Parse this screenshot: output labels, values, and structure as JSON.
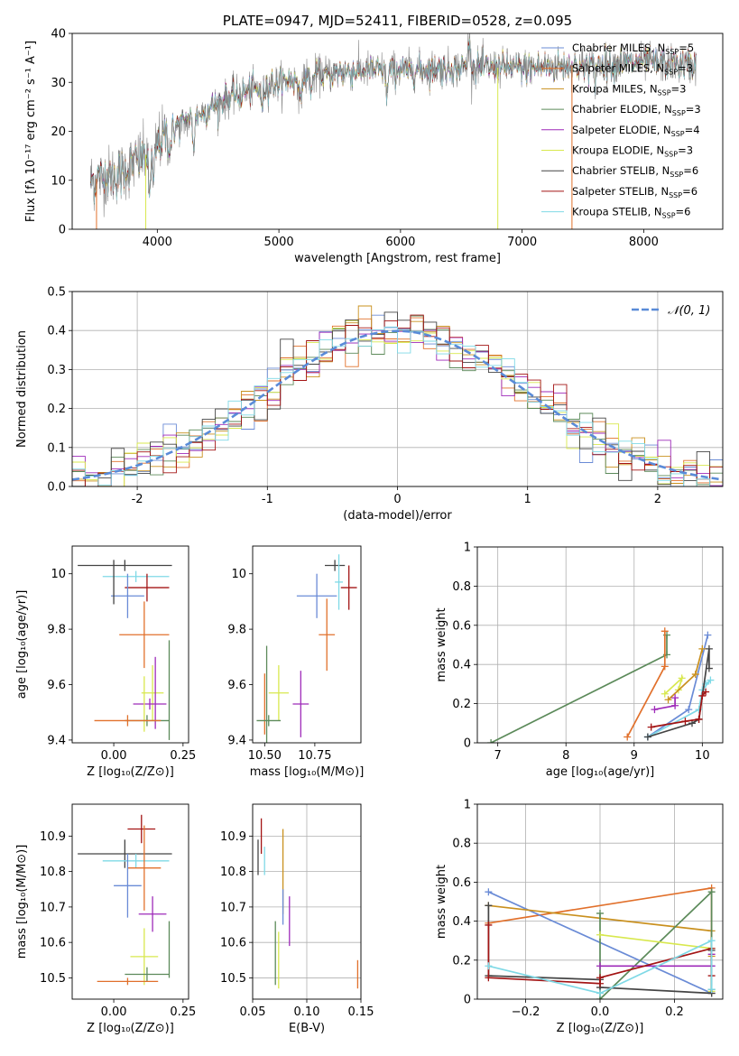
{
  "figure_title": "PLATE=0947, MJD=52411, FIBERID=0528, z=0.095",
  "colors": {
    "Chabrier MILES": "#6a8bd6",
    "Salpeter MILES": "#e1702b",
    "Kroupa MILES": "#c9901e",
    "Chabrier ELODIE": "#5c8a5a",
    "Salpeter ELODIE": "#9e2ab9",
    "Kroupa ELODIE": "#d8e84e",
    "Chabrier STELIB": "#444444",
    "Salpeter STELIB": "#a31414",
    "Kroupa STELIB": "#7fd9e6",
    "Normal": "#5a8bd8",
    "grid": "#b0b0b0"
  },
  "chart_data": [
    {
      "id": "spectrum",
      "type": "line",
      "title": "PLATE=0947, MJD=52411, FIBERID=0528, z=0.095",
      "xlabel": "wavelength [Angstrom, rest frame]",
      "ylabel": "Flux [fλ 10⁻¹⁷ erg cm⁻² s⁻¹ A⁻¹]",
      "xlim": [
        3300,
        8650
      ],
      "ylim": [
        0,
        40
      ],
      "xticks": [
        4000,
        5000,
        6000,
        7000,
        8000
      ],
      "yticks": [
        0,
        10,
        20,
        30,
        40
      ],
      "grid": false,
      "legend_position": "right",
      "legend": [
        {
          "label": "Chabrier MILES, N",
          "sub": "SSP",
          "suffix": "=5",
          "color": "#6a8bd6"
        },
        {
          "label": "Salpeter MILES, N",
          "sub": "SSP",
          "suffix": "=3",
          "color": "#e1702b"
        },
        {
          "label": "Kroupa MILES, N",
          "sub": "SSP",
          "suffix": "=3",
          "color": "#c9901e"
        },
        {
          "label": "Chabrier ELODIE, N",
          "sub": "SSP",
          "suffix": "=3",
          "color": "#5c8a5a"
        },
        {
          "label": "Salpeter ELODIE, N",
          "sub": "SSP",
          "suffix": "=4",
          "color": "#9e2ab9"
        },
        {
          "label": "Kroupa ELODIE, N",
          "sub": "SSP",
          "suffix": "=3",
          "color": "#d8e84e"
        },
        {
          "label": "Chabrier STELIB, N",
          "sub": "SSP",
          "suffix": "=6",
          "color": "#444444"
        },
        {
          "label": "Salpeter STELIB, N",
          "sub": "SSP",
          "suffix": "=6",
          "color": "#a31414"
        },
        {
          "label": "Kroupa STELIB, N",
          "sub": "SSP",
          "suffix": "=6",
          "color": "#7fd9e6"
        }
      ],
      "data_range_x": [
        3450,
        8430
      ],
      "continuum": [
        [
          3450,
          10
        ],
        [
          3700,
          11.5
        ],
        [
          3950,
          16
        ],
        [
          4050,
          19
        ],
        [
          4300,
          23
        ],
        [
          4600,
          27
        ],
        [
          5000,
          30
        ],
        [
          5300,
          31.5
        ],
        [
          5700,
          32.5
        ],
        [
          6000,
          32.5
        ],
        [
          6500,
          33
        ],
        [
          7000,
          33
        ],
        [
          7500,
          33.5
        ],
        [
          8000,
          34
        ],
        [
          8430,
          33.5
        ]
      ],
      "absorption_features": [
        [
          3934,
          9
        ],
        [
          3968,
          8
        ],
        [
          4102,
          4
        ],
        [
          4300,
          6
        ],
        [
          4861,
          4
        ],
        [
          5175,
          6
        ],
        [
          5270,
          3
        ],
        [
          5890,
          5
        ],
        [
          6563,
          -6
        ],
        [
          7600,
          3
        ]
      ],
      "dropouts": [
        [
          3500,
          0,
          "#e1702b"
        ],
        [
          3905,
          0,
          "#d8e84e"
        ],
        [
          6800,
          0,
          "#d8e84e"
        ],
        [
          7410,
          0,
          "#e1702b"
        ]
      ]
    },
    {
      "id": "residuals",
      "type": "step",
      "xlabel": "(data-model)/error",
      "ylabel": "Normed distribution",
      "xlim": [
        -2.5,
        2.5
      ],
      "ylim": [
        0,
        0.5
      ],
      "xticks": [
        -2,
        -1,
        0,
        1,
        2
      ],
      "yticks": [
        0.0,
        0.1,
        0.2,
        0.3,
        0.4,
        0.5
      ],
      "grid": true,
      "legend_position": "upper right",
      "legend": [
        {
          "label": "𝒩(0, 1)",
          "color": "#5a8bd8",
          "style": "dashed"
        }
      ],
      "bins": 50,
      "bin_width": 0.1
    },
    {
      "id": "age_vs_Z",
      "type": "errorbar",
      "xlabel": "Z [log₁₀(Z/Z⊙)]",
      "ylabel": "age  [log₁₀(age/yr)]",
      "xlim": [
        -0.15,
        0.27
      ],
      "ylim": [
        9.39,
        10.1
      ],
      "xticks": [
        0.0,
        0.25
      ],
      "xticklabels": [
        "0.00",
        "0.25"
      ],
      "yticks": [
        9.4,
        9.6,
        9.8,
        10.0
      ],
      "grid": false,
      "points": [
        {
          "series": "Chabrier STELIB",
          "x": 0.04,
          "xerr": 0.17,
          "y": 10.03,
          "yerr": 0.02
        },
        {
          "series": "Kroupa STELIB",
          "x": 0.08,
          "xerr": 0.12,
          "y": 9.99,
          "yerr": 0.02
        },
        {
          "series": "Salpeter STELIB",
          "x": 0.12,
          "xerr": 0.08,
          "y": 9.95,
          "yerr": 0.05
        },
        {
          "series": "Chabrier MILES",
          "x": 0.05,
          "xerr": 0.06,
          "y": 9.92,
          "yerr": 0.08
        },
        {
          "series": "Chabrier STELIB",
          "x": 0.0,
          "xerr": 0.0,
          "y": 9.97,
          "yerr": 0.08
        },
        {
          "series": "Salpeter MILES",
          "x": 0.11,
          "xerr": 0.09,
          "y": 9.78,
          "yerr": 0.12
        },
        {
          "series": "Chabrier ELODIE",
          "x": 0.2,
          "xerr": 0.0,
          "y": 9.58,
          "yerr": 0.18
        },
        {
          "series": "Kroupa ELODIE",
          "x": 0.14,
          "xerr": 0.04,
          "y": 9.57,
          "yerr": 0.1
        },
        {
          "series": "Salpeter ELODIE",
          "x": 0.15,
          "xerr": 0.0,
          "y": 9.57,
          "yerr": 0.13
        },
        {
          "series": "Salpeter ELODIE",
          "x": 0.13,
          "xerr": 0.06,
          "y": 9.53,
          "yerr": 0.02
        },
        {
          "series": "Kroupa ELODIE",
          "x": 0.11,
          "xerr": 0.0,
          "y": 9.53,
          "yerr": 0.1
        },
        {
          "series": "Chabrier ELODIE",
          "x": 0.12,
          "xerr": 0.08,
          "y": 9.47,
          "yerr": 0.02
        },
        {
          "series": "Salpeter MILES",
          "x": 0.05,
          "xerr": 0.12,
          "y": 9.47,
          "yerr": 0.02
        }
      ]
    },
    {
      "id": "age_vs_mass",
      "type": "errorbar",
      "xlabel": "mass [log₁₀(M/M⊙)]",
      "ylabel": "",
      "xlim": [
        10.44,
        10.98
      ],
      "ylim": [
        9.39,
        10.1
      ],
      "xticks": [
        10.5,
        10.75
      ],
      "xticklabels": [
        "10.50",
        "10.75"
      ],
      "yticks": [
        9.4,
        9.6,
        9.8,
        10.0
      ],
      "grid": false,
      "points": [
        {
          "series": "Chabrier STELIB",
          "x": 10.85,
          "xerr": 0.05,
          "y": 10.03,
          "yerr": 0.02
        },
        {
          "series": "Kroupa STELIB",
          "x": 10.87,
          "xerr": 0.02,
          "y": 9.97,
          "yerr": 0.1
        },
        {
          "series": "Salpeter STELIB",
          "x": 10.92,
          "xerr": 0.04,
          "y": 9.95,
          "yerr": 0.08
        },
        {
          "series": "Chabrier MILES",
          "x": 10.76,
          "xerr": 0.1,
          "y": 9.92,
          "yerr": 0.08
        },
        {
          "series": "Salpeter MILES",
          "x": 10.81,
          "xerr": 0.04,
          "y": 9.78,
          "yerr": 0.13
        },
        {
          "series": "Salpeter MILES",
          "x": 10.5,
          "xerr": 0.0,
          "y": 9.53,
          "yerr": 0.11
        },
        {
          "series": "Chabrier ELODIE",
          "x": 10.51,
          "xerr": 0.0,
          "y": 9.54,
          "yerr": 0.2
        },
        {
          "series": "Kroupa ELODIE",
          "x": 10.57,
          "xerr": 0.05,
          "y": 9.57,
          "yerr": 0.1
        },
        {
          "series": "Salpeter ELODIE",
          "x": 10.68,
          "xerr": 0.04,
          "y": 9.53,
          "yerr": 0.12
        },
        {
          "series": "Chabrier ELODIE",
          "x": 10.52,
          "xerr": 0.06,
          "y": 9.47,
          "yerr": 0.02
        }
      ]
    },
    {
      "id": "mass_weight_vs_age",
      "type": "line",
      "xlabel": "age  [log₁₀(age/yr)]",
      "ylabel": "mass weight",
      "xlim": [
        6.7,
        10.3
      ],
      "ylim": [
        0,
        1
      ],
      "xticks": [
        7,
        8,
        9,
        10
      ],
      "yticks": [
        0.0,
        0.2,
        0.4,
        0.6,
        0.8,
        1.0
      ],
      "grid": true,
      "series": [
        {
          "name": "Chabrier ELODIE",
          "x": [
            6.9,
            9.48,
            9.48
          ],
          "y": [
            0.0,
            0.45,
            0.55
          ]
        },
        {
          "name": "Salpeter MILES",
          "x": [
            8.9,
            9.45,
            9.45
          ],
          "y": [
            0.03,
            0.39,
            0.57
          ]
        },
        {
          "name": "Kroupa ELODIE",
          "x": [
            9.45,
            9.7,
            9.65
          ],
          "y": [
            0.25,
            0.33,
            0.27
          ]
        },
        {
          "name": "Chabrier MILES",
          "x": [
            9.2,
            9.8,
            10.08
          ],
          "y": [
            0.03,
            0.17,
            0.55
          ]
        },
        {
          "name": "Kroupa MILES",
          "x": [
            9.5,
            9.9,
            10.0
          ],
          "y": [
            0.22,
            0.35,
            0.48
          ]
        },
        {
          "name": "Salpeter ELODIE",
          "x": [
            9.3,
            9.6,
            9.6
          ],
          "y": [
            0.17,
            0.19,
            0.23
          ]
        },
        {
          "name": "Kroupa STELIB",
          "x": [
            9.2,
            9.95,
            10.0,
            10.12,
            10.05
          ],
          "y": [
            0.03,
            0.17,
            0.27,
            0.32,
            0.3
          ]
        },
        {
          "name": "Chabrier STELIB",
          "x": [
            9.2,
            9.85,
            9.95,
            10.1,
            10.1
          ],
          "y": [
            0.03,
            0.1,
            0.12,
            0.48,
            0.38
          ]
        },
        {
          "name": "Salpeter STELIB",
          "x": [
            9.25,
            9.75,
            9.95,
            10.0,
            10.05
          ],
          "y": [
            0.08,
            0.11,
            0.12,
            0.24,
            0.26
          ]
        }
      ]
    },
    {
      "id": "mass_vs_Z",
      "type": "errorbar",
      "xlabel": "Z [log₁₀(Z/Z⊙)]",
      "ylabel": "mass [log₁₀(M/M⊙)]",
      "xlim": [
        -0.15,
        0.27
      ],
      "ylim": [
        10.44,
        10.99
      ],
      "xticks": [
        0.0,
        0.25
      ],
      "xticklabels": [
        "0.00",
        "0.25"
      ],
      "yticks": [
        10.5,
        10.6,
        10.7,
        10.8,
        10.9
      ],
      "grid": false,
      "points": [
        {
          "series": "Salpeter STELIB",
          "x": 0.1,
          "xerr": 0.05,
          "y": 10.92,
          "yerr": 0.04
        },
        {
          "series": "Chabrier STELIB",
          "x": 0.04,
          "xerr": 0.17,
          "y": 10.85,
          "yerr": 0.04
        },
        {
          "series": "Kroupa STELIB",
          "x": 0.08,
          "xerr": 0.12,
          "y": 10.83,
          "yerr": 0.02
        },
        {
          "series": "Salpeter MILES",
          "x": 0.11,
          "xerr": 0.06,
          "y": 10.81,
          "yerr": 0.12
        },
        {
          "series": "Chabrier MILES",
          "x": 0.05,
          "xerr": 0.05,
          "y": 10.76,
          "yerr": 0.09
        },
        {
          "series": "Salpeter ELODIE",
          "x": 0.14,
          "xerr": 0.05,
          "y": 10.68,
          "yerr": 0.05
        },
        {
          "series": "Chabrier ELODIE",
          "x": 0.2,
          "xerr": 0.0,
          "y": 10.58,
          "yerr": 0.08
        },
        {
          "series": "Kroupa ELODIE",
          "x": 0.11,
          "xerr": 0.05,
          "y": 10.56,
          "yerr": 0.08
        },
        {
          "series": "Chabrier ELODIE",
          "x": 0.12,
          "xerr": 0.08,
          "y": 10.51,
          "yerr": 0.02
        },
        {
          "series": "Salpeter MILES",
          "x": 0.05,
          "xerr": 0.11,
          "y": 10.49,
          "yerr": 0.01
        }
      ]
    },
    {
      "id": "mass_vs_ebv",
      "type": "errorbar",
      "xlabel": "E(B-V)",
      "ylabel": "",
      "xlim": [
        0.05,
        0.15
      ],
      "ylim": [
        10.44,
        10.99
      ],
      "xticks": [
        0.05,
        0.1,
        0.15
      ],
      "xticklabels": [
        "0.05",
        "0.10",
        "0.15"
      ],
      "yticks": [
        10.5,
        10.6,
        10.7,
        10.8,
        10.9
      ],
      "grid": true,
      "points": [
        {
          "series": "Salpeter STELIB",
          "x": 0.058,
          "xerr": 0,
          "y": 10.9,
          "yerr": 0.05
        },
        {
          "series": "Chabrier STELIB",
          "x": 0.055,
          "xerr": 0,
          "y": 10.84,
          "yerr": 0.05
        },
        {
          "series": "Kroupa STELIB",
          "x": 0.061,
          "xerr": 0,
          "y": 10.83,
          "yerr": 0.04
        },
        {
          "series": "Kroupa MILES",
          "x": 0.078,
          "xerr": 0,
          "y": 10.8,
          "yerr": 0.12
        },
        {
          "series": "Chabrier MILES",
          "x": 0.078,
          "xerr": 0,
          "y": 10.7,
          "yerr": 0.05
        },
        {
          "series": "Salpeter ELODIE",
          "x": 0.084,
          "xerr": 0,
          "y": 10.66,
          "yerr": 0.07
        },
        {
          "series": "Chabrier ELODIE",
          "x": 0.071,
          "xerr": 0,
          "y": 10.57,
          "yerr": 0.09
        },
        {
          "series": "Kroupa ELODIE",
          "x": 0.074,
          "xerr": 0,
          "y": 10.55,
          "yerr": 0.08
        },
        {
          "series": "Salpeter MILES",
          "x": 0.147,
          "xerr": 0,
          "y": 10.51,
          "yerr": 0.04
        }
      ]
    },
    {
      "id": "mass_weight_vs_Z",
      "type": "line",
      "xlabel": "Z [log₁₀(Z/Z⊙)]",
      "ylabel": "mass weight",
      "xlim": [
        -0.33,
        0.33
      ],
      "ylim": [
        0,
        1
      ],
      "xticks": [
        -0.2,
        0.0,
        0.2
      ],
      "xticklabels": [
        "−0.2",
        "0.0",
        "0.2"
      ],
      "yticks": [
        0.0,
        0.2,
        0.4,
        0.6,
        0.8,
        1.0
      ],
      "grid": true,
      "series": [
        {
          "name": "Salpeter MILES",
          "x": [
            -0.3,
            0.3,
            0.3
          ],
          "y": [
            0.39,
            0.57,
            0.03
          ]
        },
        {
          "name": "Chabrier MILES",
          "x": [
            -0.3,
            0.3,
            0.3
          ],
          "y": [
            0.55,
            0.03,
            0.17
          ]
        },
        {
          "name": "Kroupa MILES",
          "x": [
            -0.3,
            0.3,
            0.3
          ],
          "y": [
            0.48,
            0.35,
            0.22
          ]
        },
        {
          "name": "Chabrier ELODIE",
          "x": [
            0.0,
            0.0,
            0.3,
            0.3
          ],
          "y": [
            0.44,
            0.0,
            0.55,
            0.05
          ]
        },
        {
          "name": "Kroupa ELODIE",
          "x": [
            0.0,
            0.3,
            0.3
          ],
          "y": [
            0.33,
            0.26,
            0.04
          ]
        },
        {
          "name": "Salpeter ELODIE",
          "x": [
            0.0,
            0.3,
            0.3
          ],
          "y": [
            0.17,
            0.17,
            0.23
          ]
        },
        {
          "name": "Chabrier STELIB",
          "x": [
            -0.3,
            -0.3,
            0.0,
            0.0,
            0.3,
            0.3
          ],
          "y": [
            0.48,
            0.12,
            0.1,
            0.06,
            0.03,
            0.25
          ]
        },
        {
          "name": "Salpeter STELIB",
          "x": [
            -0.3,
            -0.3,
            0.0,
            0.0,
            0.3,
            0.3
          ],
          "y": [
            0.38,
            0.11,
            0.08,
            0.11,
            0.26,
            0.12
          ]
        },
        {
          "name": "Kroupa STELIB",
          "x": [
            -0.3,
            0.0,
            0.3,
            0.3
          ],
          "y": [
            0.17,
            0.03,
            0.3,
            0.05
          ]
        }
      ]
    }
  ]
}
